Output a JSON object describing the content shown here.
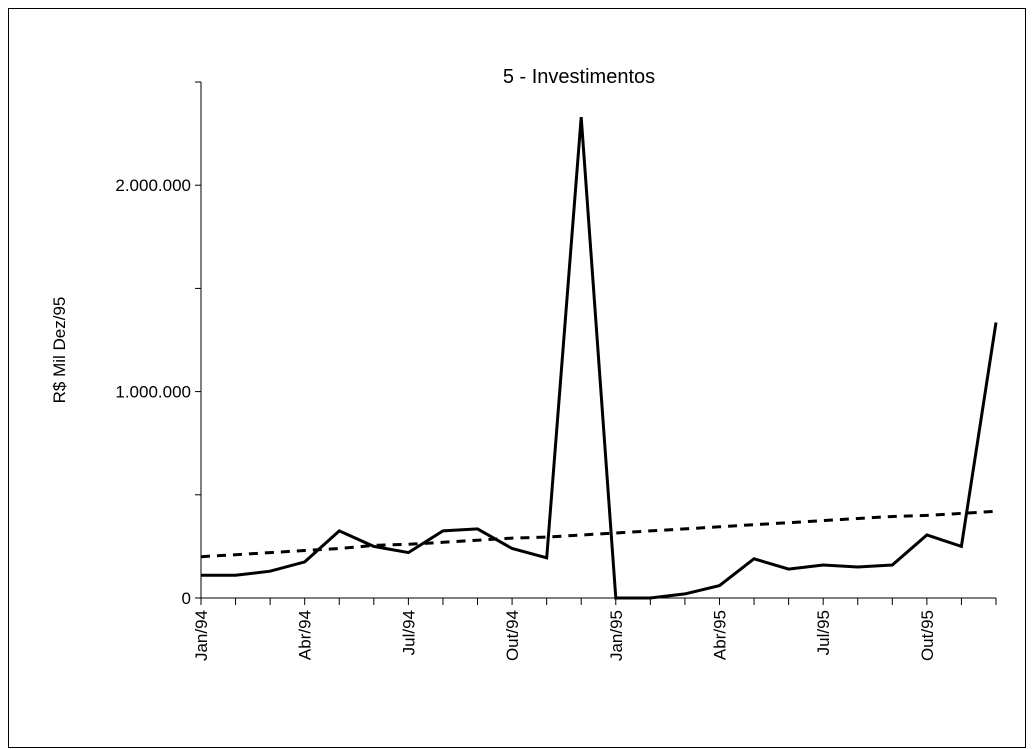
{
  "chart_data": {
    "type": "line",
    "title": "5 - Investimentos",
    "xlabel": "",
    "ylabel": "R$ Mil Dez/95",
    "ylim": [
      0,
      2500000
    ],
    "yticks": [
      0,
      1000000,
      2000000
    ],
    "ytick_labels": [
      "0",
      "1.000.000",
      "2.000.000"
    ],
    "x": [
      "Jan/94",
      "Fev/94",
      "Mar/94",
      "Abr/94",
      "Mai/94",
      "Jun/94",
      "Jul/94",
      "Ago/94",
      "Set/94",
      "Out/94",
      "Nov/94",
      "Dez/94",
      "Jan/95",
      "Fev/95",
      "Mar/95",
      "Abr/95",
      "Mai/95",
      "Jun/95",
      "Jul/95",
      "Ago/95",
      "Set/95",
      "Out/95",
      "Nov/95",
      "Dez/95"
    ],
    "xtick_labels": [
      "Jan/94",
      "Abr/94",
      "Jul/94",
      "Out/94",
      "Jan/95",
      "Abr/95",
      "Jul/95",
      "Out/95"
    ],
    "xtick_label_indices": [
      0,
      3,
      6,
      9,
      12,
      15,
      18,
      21
    ],
    "grid": false,
    "legend": "none",
    "series": [
      {
        "style": "solid",
        "color": "#000000",
        "values": [
          110000,
          110000,
          130000,
          175000,
          325000,
          250000,
          220000,
          325000,
          335000,
          240000,
          195000,
          2330000,
          0,
          0,
          20000,
          60000,
          190000,
          140000,
          160000,
          150000,
          160000,
          305000,
          250000,
          1335000
        ]
      },
      {
        "style": "dashed",
        "color": "#000000",
        "values": [
          200000,
          210000,
          220000,
          230000,
          240000,
          255000,
          260000,
          270000,
          280000,
          290000,
          295000,
          305000,
          315000,
          325000,
          335000,
          345000,
          355000,
          365000,
          375000,
          385000,
          395000,
          400000,
          410000,
          420000
        ]
      }
    ]
  }
}
